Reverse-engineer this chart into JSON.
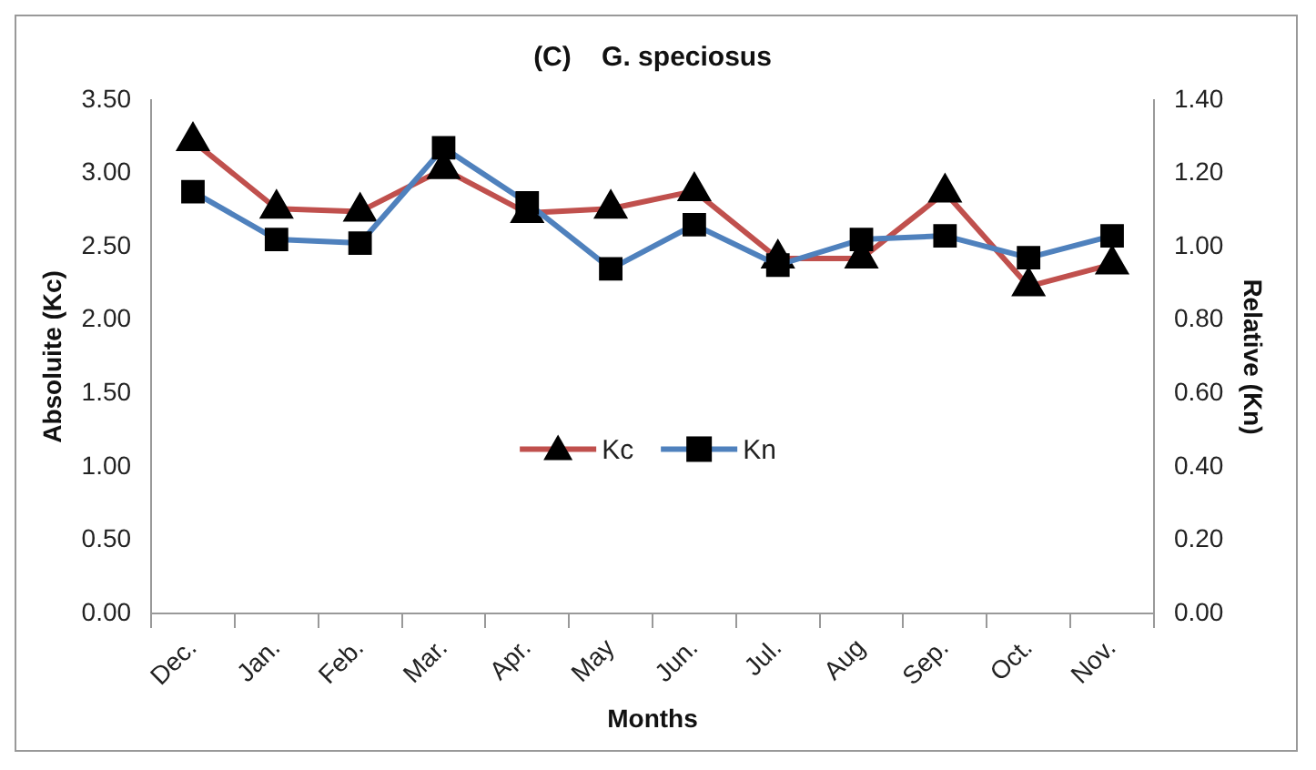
{
  "chart_data": {
    "type": "line",
    "title": "(C)    G. speciosus",
    "xlabel": "Months",
    "ylabel": "Absoluite (Kc)",
    "y2label": "Relative (Kn)",
    "categories": [
      "Dec.",
      "Jan.",
      "Feb.",
      "Mar.",
      "Apr.",
      "May",
      "Jun.",
      "Jul.",
      "Aug",
      "Sep.",
      "Oct.",
      "Nov."
    ],
    "series": [
      {
        "name": "Kc",
        "color": "#c0504d",
        "marker": "triangle",
        "values": [
          3.22,
          2.76,
          2.74,
          3.03,
          2.73,
          2.76,
          2.88,
          2.42,
          2.42,
          2.87,
          2.23,
          2.38
        ]
      },
      {
        "name": "Kn",
        "color": "#4f81bd",
        "marker": "square",
        "axis": "y2",
        "values": [
          1.15,
          1.02,
          1.01,
          1.27,
          1.12,
          0.94,
          1.06,
          0.95,
          1.02,
          1.03,
          0.97,
          1.03
        ]
      }
    ],
    "ylim": [
      0,
      3.5
    ],
    "yticks": [
      {
        "value": 0,
        "label": "0.00"
      },
      {
        "value": 0.5,
        "label": "0.50"
      },
      {
        "value": 1,
        "label": "1.00"
      },
      {
        "value": 1.5,
        "label": "1.50"
      },
      {
        "value": 2,
        "label": "2.00"
      },
      {
        "value": 2.5,
        "label": "2.50"
      },
      {
        "value": 3,
        "label": "3.00"
      },
      {
        "value": 3.5,
        "label": "3.50"
      }
    ],
    "y2lim": [
      0,
      1.4
    ],
    "y2ticks": [
      {
        "value": 0,
        "label": "0.00"
      },
      {
        "value": 0.2,
        "label": "0.20"
      },
      {
        "value": 0.4,
        "label": "0.40"
      },
      {
        "value": 0.6,
        "label": "0.60"
      },
      {
        "value": 0.8,
        "label": "0.80"
      },
      {
        "value": 1,
        "label": "1.00"
      },
      {
        "value": 1.2,
        "label": "1.20"
      },
      {
        "value": 1.4,
        "label": "1.40"
      }
    ],
    "grid": false,
    "legend": "center",
    "line_style": "solid"
  }
}
